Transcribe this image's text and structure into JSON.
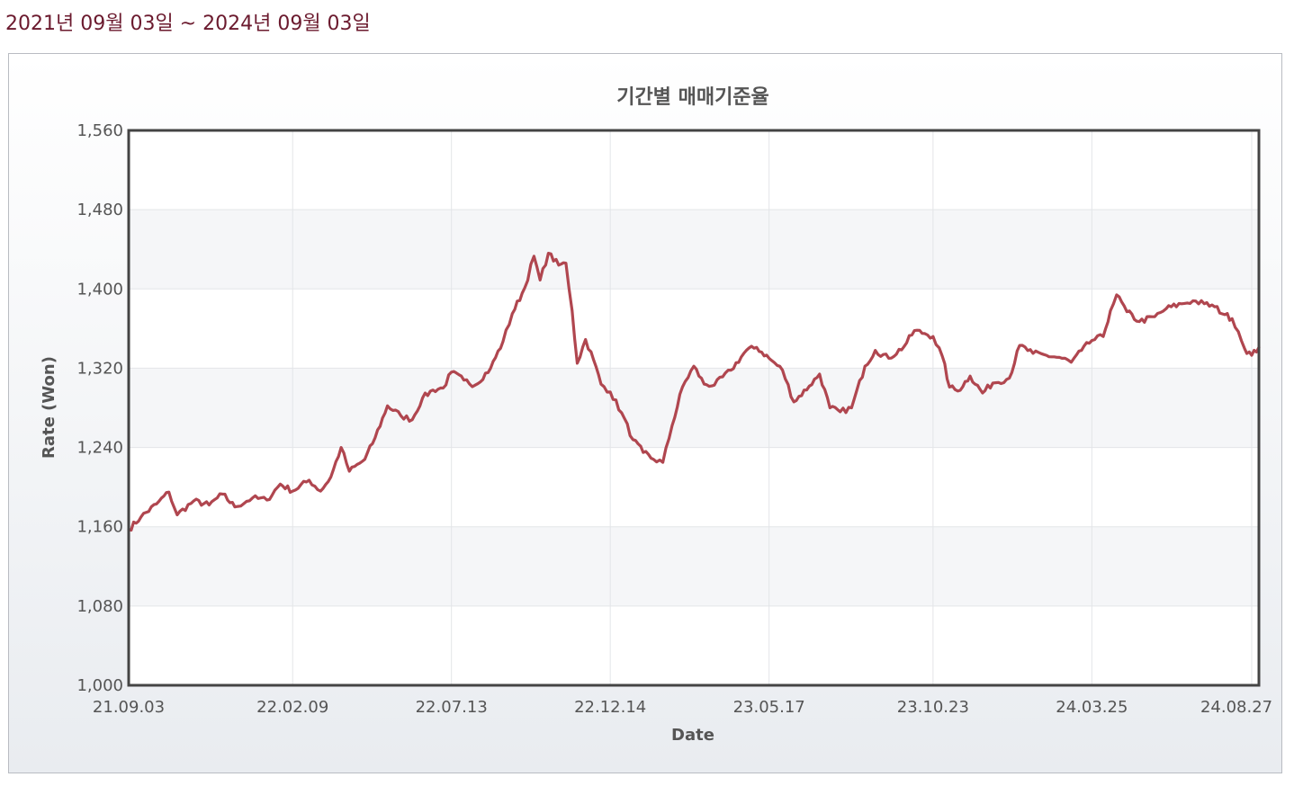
{
  "header": {
    "period_label": "2021년 09월 03일 ~ 2024년 09월 03일"
  },
  "colors": {
    "line": "#b0464f",
    "plot_border": "#444444",
    "period_text": "#6b1a2e"
  },
  "chart_data": {
    "type": "line",
    "title": "기간별 매매기준율",
    "xlabel": "Date",
    "ylabel": "Rate (Won)",
    "ylim": [
      1000,
      1560
    ],
    "yticks": [
      1000,
      1080,
      1160,
      1240,
      1320,
      1400,
      1480,
      1560
    ],
    "ytick_labels": [
      "1,000",
      "1,080",
      "1,160",
      "1,240",
      "1,320",
      "1,400",
      "1,480",
      "1,560"
    ],
    "xlim": [
      "2021-09-03",
      "2024-09-03"
    ],
    "xticks": [
      "2021-09-03",
      "2022-02-09",
      "2022-07-13",
      "2022-12-14",
      "2023-05-17",
      "2023-10-23",
      "2024-03-25",
      "2024-08-27"
    ],
    "xtick_labels": [
      "21.09.03",
      "22.02.09",
      "22.07.13",
      "22.12.14",
      "23.05.17",
      "23.10.23",
      "24.03.25",
      "24.08.27"
    ],
    "grid": true,
    "series": [
      {
        "points": [
          [
            "2021-09-03",
            1157
          ],
          [
            "2021-09-15",
            1170
          ],
          [
            "2021-09-30",
            1183
          ],
          [
            "2021-10-12",
            1195
          ],
          [
            "2021-10-20",
            1172
          ],
          [
            "2021-11-05",
            1186
          ],
          [
            "2021-11-20",
            1182
          ],
          [
            "2021-12-03",
            1193
          ],
          [
            "2021-12-15",
            1180
          ],
          [
            "2022-01-01",
            1189
          ],
          [
            "2022-01-15",
            1187
          ],
          [
            "2022-01-28",
            1203
          ],
          [
            "2022-02-09",
            1196
          ],
          [
            "2022-02-25",
            1207
          ],
          [
            "2022-03-08",
            1196
          ],
          [
            "2022-03-18",
            1210
          ],
          [
            "2022-03-28",
            1240
          ],
          [
            "2022-04-05",
            1216
          ],
          [
            "2022-04-20",
            1228
          ],
          [
            "2022-04-30",
            1250
          ],
          [
            "2022-05-12",
            1282
          ],
          [
            "2022-05-25",
            1272
          ],
          [
            "2022-06-05",
            1268
          ],
          [
            "2022-06-15",
            1290
          ],
          [
            "2022-06-25",
            1298
          ],
          [
            "2022-07-05",
            1300
          ],
          [
            "2022-07-13",
            1316
          ],
          [
            "2022-07-25",
            1308
          ],
          [
            "2022-08-05",
            1303
          ],
          [
            "2022-08-20",
            1320
          ],
          [
            "2022-09-01",
            1347
          ],
          [
            "2022-09-10",
            1375
          ],
          [
            "2022-09-22",
            1401
          ],
          [
            "2022-10-01",
            1433
          ],
          [
            "2022-10-07",
            1409
          ],
          [
            "2022-10-15",
            1436
          ],
          [
            "2022-10-25",
            1424
          ],
          [
            "2022-11-01",
            1426
          ],
          [
            "2022-11-07",
            1378
          ],
          [
            "2022-11-12",
            1325
          ],
          [
            "2022-11-20",
            1349
          ],
          [
            "2022-11-28",
            1328
          ],
          [
            "2022-12-05",
            1304
          ],
          [
            "2022-12-14",
            1296
          ],
          [
            "2022-12-25",
            1275
          ],
          [
            "2023-01-05",
            1248
          ],
          [
            "2023-01-15",
            1235
          ],
          [
            "2023-01-25",
            1228
          ],
          [
            "2023-02-03",
            1225
          ],
          [
            "2023-02-12",
            1262
          ],
          [
            "2023-02-22",
            1301
          ],
          [
            "2023-03-05",
            1322
          ],
          [
            "2023-03-15",
            1304
          ],
          [
            "2023-03-25",
            1303
          ],
          [
            "2023-04-10",
            1318
          ],
          [
            "2023-04-25",
            1338
          ],
          [
            "2023-05-05",
            1341
          ],
          [
            "2023-05-17",
            1330
          ],
          [
            "2023-05-30",
            1318
          ],
          [
            "2023-06-10",
            1286
          ],
          [
            "2023-06-25",
            1302
          ],
          [
            "2023-07-05",
            1314
          ],
          [
            "2023-07-15",
            1280
          ],
          [
            "2023-07-25",
            1276
          ],
          [
            "2023-08-05",
            1280
          ],
          [
            "2023-08-18",
            1322
          ],
          [
            "2023-08-28",
            1338
          ],
          [
            "2023-09-10",
            1330
          ],
          [
            "2023-09-25",
            1342
          ],
          [
            "2023-10-05",
            1358
          ],
          [
            "2023-10-15",
            1355
          ],
          [
            "2023-10-23",
            1352
          ],
          [
            "2023-11-01",
            1332
          ],
          [
            "2023-11-08",
            1301
          ],
          [
            "2023-11-16",
            1297
          ],
          [
            "2023-11-28",
            1312
          ],
          [
            "2023-12-10",
            1295
          ],
          [
            "2023-12-20",
            1305
          ],
          [
            "2024-01-05",
            1310
          ],
          [
            "2024-01-15",
            1343
          ],
          [
            "2024-01-28",
            1335
          ],
          [
            "2024-02-10",
            1333
          ],
          [
            "2024-02-25",
            1330
          ],
          [
            "2024-03-05",
            1326
          ],
          [
            "2024-03-15",
            1338
          ],
          [
            "2024-03-25",
            1348
          ],
          [
            "2024-04-05",
            1352
          ],
          [
            "2024-04-12",
            1378
          ],
          [
            "2024-04-18",
            1394
          ],
          [
            "2024-04-28",
            1377
          ],
          [
            "2024-05-10",
            1367
          ],
          [
            "2024-05-25",
            1372
          ],
          [
            "2024-06-05",
            1380
          ],
          [
            "2024-06-20",
            1385
          ],
          [
            "2024-07-01",
            1388
          ],
          [
            "2024-07-12",
            1385
          ],
          [
            "2024-07-22",
            1382
          ],
          [
            "2024-08-01",
            1374
          ],
          [
            "2024-08-08",
            1370
          ],
          [
            "2024-08-14",
            1357
          ],
          [
            "2024-08-20",
            1340
          ],
          [
            "2024-08-27",
            1333
          ],
          [
            "2024-09-03",
            1341
          ]
        ]
      }
    ]
  }
}
